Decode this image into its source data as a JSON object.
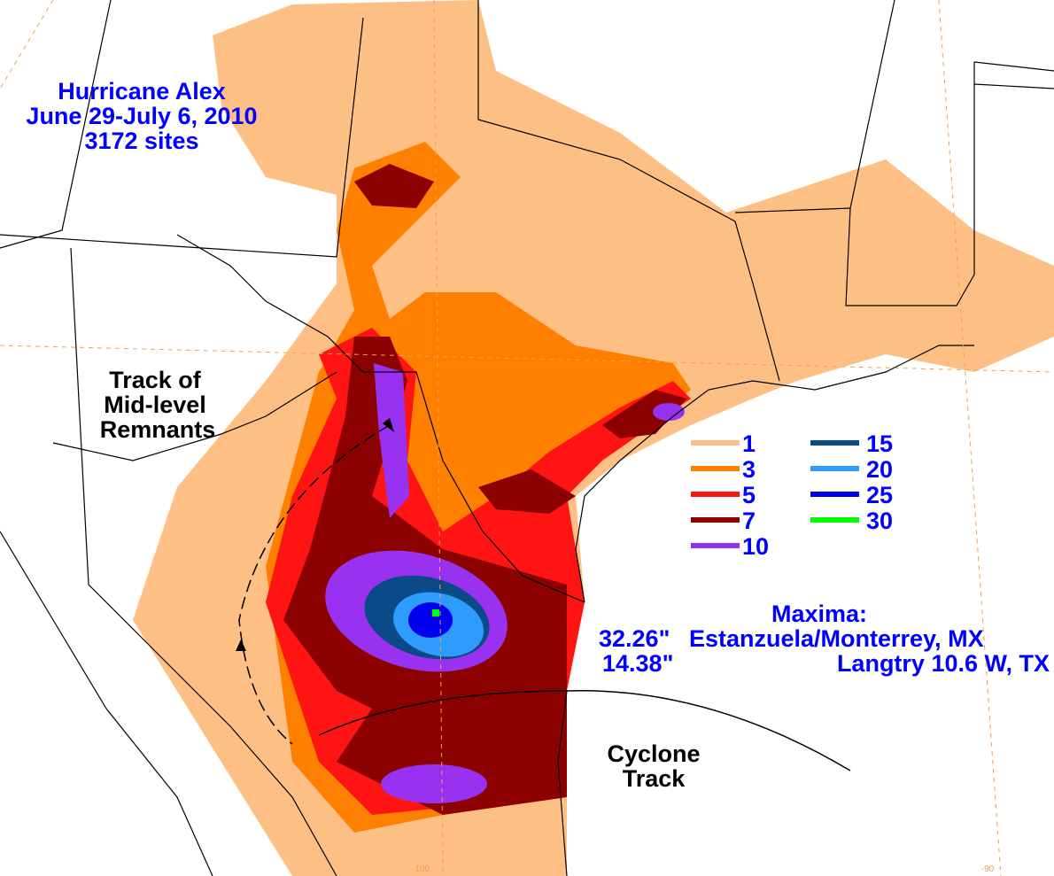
{
  "title": [
    "Hurricane Alex",
    "June 29-July 6, 2010",
    "3172 sites"
  ],
  "remnants_label": [
    "Track of",
    "Mid-level",
    "Remnants"
  ],
  "cyclone_label": [
    "Cyclone",
    "Track"
  ],
  "legend": [
    {
      "value": 1,
      "color": "#fdbf84"
    },
    {
      "value": 3,
      "color": "#ff8000"
    },
    {
      "value": 5,
      "color": "#ff1414"
    },
    {
      "value": 7,
      "color": "#8c0000"
    },
    {
      "value": 10,
      "color": "#9932f0"
    },
    {
      "value": 15,
      "color": "#0a4a88"
    },
    {
      "value": 20,
      "color": "#2e9cff"
    },
    {
      "value": 25,
      "color": "#0000f0"
    },
    {
      "value": 30,
      "color": "#00ff00"
    }
  ],
  "maxima": {
    "heading": "Maxima:",
    "entries": [
      {
        "amount": "32.26\"",
        "place": "Estanzuela/Monterrey, MX"
      },
      {
        "amount": "14.38\"",
        "place": "Langtry 10.6 W, TX"
      }
    ]
  },
  "longitudes": [
    "-100",
    "-90"
  ]
}
